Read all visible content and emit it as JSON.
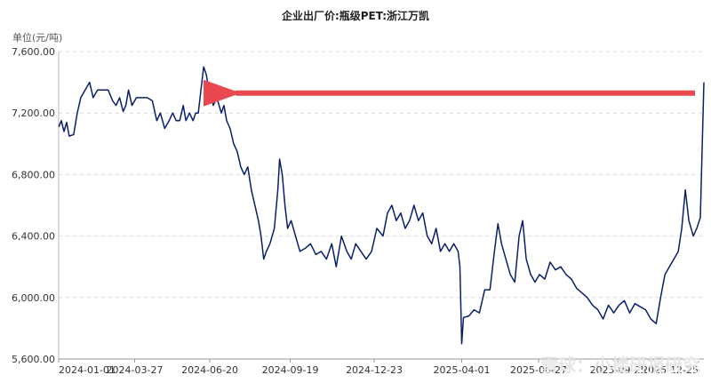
{
  "chart_data": {
    "type": "line",
    "title": "企业出厂价:瓶级PET:浙江万凯",
    "ylabel": "单位(元/吨)",
    "xlabel": "",
    "ylim": [
      5600,
      7600
    ],
    "xlim": [
      "2024-01-01",
      "2025-12-31"
    ],
    "yticks": [
      "5,600.00",
      "6,000.00",
      "6,400.00",
      "6,800.00",
      "7,200.00",
      "7,600.00"
    ],
    "ytick_values": [
      5600,
      6000,
      6400,
      6800,
      7200,
      7600
    ],
    "xticks": [
      "2024-01-01",
      "2024-03-27",
      "2024-06-20",
      "2024-09-19",
      "2024-12-23",
      "2025-04-01",
      "2025-06-27",
      "2025-09-25",
      "2025-12-25"
    ],
    "grid": "horizontal dashed",
    "line_color": "#0a1f6b",
    "series": [
      {
        "points": [
          [
            "2024-01-01",
            7110
          ],
          [
            "2024-01-04",
            7150
          ],
          [
            "2024-01-07",
            7080
          ],
          [
            "2024-01-10",
            7140
          ],
          [
            "2024-01-13",
            7050
          ],
          [
            "2024-01-18",
            7060
          ],
          [
            "2024-01-22",
            7200
          ],
          [
            "2024-01-26",
            7300
          ],
          [
            "2024-01-31",
            7350
          ],
          [
            "2024-02-05",
            7400
          ],
          [
            "2024-02-09",
            7300
          ],
          [
            "2024-02-14",
            7350
          ],
          [
            "2024-02-20",
            7350
          ],
          [
            "2024-02-26",
            7350
          ],
          [
            "2024-03-02",
            7280
          ],
          [
            "2024-03-06",
            7250
          ],
          [
            "2024-03-10",
            7300
          ],
          [
            "2024-03-14",
            7210
          ],
          [
            "2024-03-17",
            7250
          ],
          [
            "2024-03-20",
            7350
          ],
          [
            "2024-03-24",
            7250
          ],
          [
            "2024-03-29",
            7300
          ],
          [
            "2024-04-04",
            7300
          ],
          [
            "2024-04-10",
            7300
          ],
          [
            "2024-04-16",
            7280
          ],
          [
            "2024-04-21",
            7150
          ],
          [
            "2024-04-25",
            7200
          ],
          [
            "2024-04-30",
            7100
          ],
          [
            "2024-05-05",
            7150
          ],
          [
            "2024-05-09",
            7200
          ],
          [
            "2024-05-13",
            7150
          ],
          [
            "2024-05-17",
            7150
          ],
          [
            "2024-05-21",
            7250
          ],
          [
            "2024-05-24",
            7150
          ],
          [
            "2024-05-28",
            7200
          ],
          [
            "2024-06-01",
            7150
          ],
          [
            "2024-06-04",
            7200
          ],
          [
            "2024-06-07",
            7200
          ],
          [
            "2024-06-10",
            7350
          ],
          [
            "2024-06-13",
            7500
          ],
          [
            "2024-06-16",
            7450
          ],
          [
            "2024-06-19",
            7350
          ],
          [
            "2024-06-22",
            7300
          ],
          [
            "2024-06-24",
            7250
          ],
          [
            "2024-06-28",
            7300
          ],
          [
            "2024-07-03",
            7200
          ],
          [
            "2024-07-06",
            7250
          ],
          [
            "2024-07-09",
            7150
          ],
          [
            "2024-07-13",
            7100
          ],
          [
            "2024-07-17",
            7000
          ],
          [
            "2024-07-21",
            6950
          ],
          [
            "2024-07-25",
            6850
          ],
          [
            "2024-07-29",
            6800
          ],
          [
            "2024-08-02",
            6850
          ],
          [
            "2024-08-06",
            6700
          ],
          [
            "2024-08-10",
            6600
          ],
          [
            "2024-08-14",
            6500
          ],
          [
            "2024-08-17",
            6400
          ],
          [
            "2024-08-20",
            6250
          ],
          [
            "2024-08-23",
            6300
          ],
          [
            "2024-08-27",
            6350
          ],
          [
            "2024-09-01",
            6450
          ],
          [
            "2024-09-05",
            6700
          ],
          [
            "2024-09-07",
            6900
          ],
          [
            "2024-09-10",
            6800
          ],
          [
            "2024-09-13",
            6600
          ],
          [
            "2024-09-16",
            6450
          ],
          [
            "2024-09-20",
            6500
          ],
          [
            "2024-09-25",
            6400
          ],
          [
            "2024-09-30",
            6300
          ],
          [
            "2024-10-06",
            6320
          ],
          [
            "2024-10-12",
            6350
          ],
          [
            "2024-10-18",
            6280
          ],
          [
            "2024-10-24",
            6300
          ],
          [
            "2024-10-30",
            6250
          ],
          [
            "2024-11-05",
            6350
          ],
          [
            "2024-11-10",
            6200
          ],
          [
            "2024-11-16",
            6400
          ],
          [
            "2024-11-22",
            6300
          ],
          [
            "2024-11-27",
            6250
          ],
          [
            "2024-12-02",
            6350
          ],
          [
            "2024-12-08",
            6300
          ],
          [
            "2024-12-14",
            6250
          ],
          [
            "2024-12-20",
            6300
          ],
          [
            "2024-12-26",
            6450
          ],
          [
            "2025-01-02",
            6400
          ],
          [
            "2025-01-07",
            6550
          ],
          [
            "2025-01-12",
            6600
          ],
          [
            "2025-01-17",
            6500
          ],
          [
            "2025-01-22",
            6550
          ],
          [
            "2025-01-27",
            6450
          ],
          [
            "2025-02-01",
            6500
          ],
          [
            "2025-02-06",
            6600
          ],
          [
            "2025-02-11",
            6500
          ],
          [
            "2025-02-16",
            6550
          ],
          [
            "2025-02-21",
            6400
          ],
          [
            "2025-02-26",
            6350
          ],
          [
            "2025-03-03",
            6450
          ],
          [
            "2025-03-08",
            6300
          ],
          [
            "2025-03-13",
            6350
          ],
          [
            "2025-03-18",
            6300
          ],
          [
            "2025-03-23",
            6350
          ],
          [
            "2025-03-28",
            6300
          ],
          [
            "2025-03-30",
            6200
          ],
          [
            "2025-04-01",
            5700
          ],
          [
            "2025-04-03",
            5870
          ],
          [
            "2025-04-09",
            5880
          ],
          [
            "2025-04-15",
            5920
          ],
          [
            "2025-04-21",
            5900
          ],
          [
            "2025-04-27",
            6050
          ],
          [
            "2025-05-03",
            6050
          ],
          [
            "2025-05-08",
            6300
          ],
          [
            "2025-05-12",
            6480
          ],
          [
            "2025-05-16",
            6350
          ],
          [
            "2025-05-21",
            6250
          ],
          [
            "2025-05-26",
            6150
          ],
          [
            "2025-05-31",
            6100
          ],
          [
            "2025-06-05",
            6400
          ],
          [
            "2025-06-09",
            6500
          ],
          [
            "2025-06-13",
            6250
          ],
          [
            "2025-06-18",
            6150
          ],
          [
            "2025-06-23",
            6100
          ],
          [
            "2025-06-28",
            6150
          ],
          [
            "2025-07-04",
            6120
          ],
          [
            "2025-07-10",
            6230
          ],
          [
            "2025-07-16",
            6180
          ],
          [
            "2025-07-22",
            6200
          ],
          [
            "2025-07-28",
            6150
          ],
          [
            "2025-08-03",
            6120
          ],
          [
            "2025-08-09",
            6060
          ],
          [
            "2025-08-15",
            6030
          ],
          [
            "2025-08-21",
            6000
          ],
          [
            "2025-08-27",
            5950
          ],
          [
            "2025-09-02",
            5920
          ],
          [
            "2025-09-08",
            5860
          ],
          [
            "2025-09-14",
            5950
          ],
          [
            "2025-09-20",
            5900
          ],
          [
            "2025-09-26",
            5950
          ],
          [
            "2025-10-02",
            5980
          ],
          [
            "2025-10-08",
            5900
          ],
          [
            "2025-10-14",
            5960
          ],
          [
            "2025-10-20",
            5940
          ],
          [
            "2025-10-26",
            5920
          ],
          [
            "2025-11-01",
            5860
          ],
          [
            "2025-11-07",
            5830
          ],
          [
            "2025-11-12",
            6000
          ],
          [
            "2025-11-17",
            6150
          ],
          [
            "2025-11-22",
            6200
          ],
          [
            "2025-11-27",
            6250
          ],
          [
            "2025-12-02",
            6300
          ],
          [
            "2025-12-06",
            6450
          ],
          [
            "2025-12-10",
            6700
          ],
          [
            "2025-12-14",
            6500
          ],
          [
            "2025-12-19",
            6400
          ],
          [
            "2025-12-23",
            6450
          ],
          [
            "2025-12-27",
            6520
          ],
          [
            "2025-12-31",
            7400
          ]
        ]
      }
    ],
    "annotation": {
      "type": "arrow",
      "color": "#e8484f",
      "from": [
        "2025-12-31",
        7330
      ],
      "to": [
        "2024-06-23",
        7330
      ]
    },
    "watermark": "雪球：小楼研报研究"
  }
}
